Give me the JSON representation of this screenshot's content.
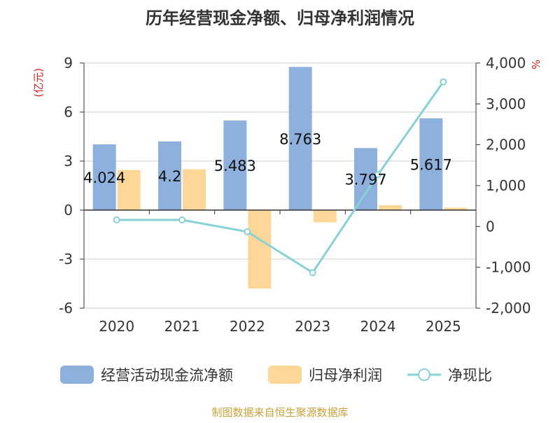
{
  "chart_data": {
    "type": "bar+line",
    "title": "历年经营现金净额、归母净利润情况",
    "categories": [
      "2020",
      "2021",
      "2022",
      "2023",
      "2024",
      "2025"
    ],
    "series": [
      {
        "name": "经营活动现金流净额",
        "type": "bar",
        "axis": "left",
        "color": "#8eb0dc",
        "values": [
          4.024,
          4.2,
          5.483,
          8.763,
          3.797,
          5.617
        ],
        "labels": [
          "4.024",
          "4.2",
          "5.483",
          "8.763",
          "3.797",
          "5.617"
        ]
      },
      {
        "name": "归母净利润",
        "type": "bar",
        "axis": "left",
        "color": "#fdd797",
        "values": [
          2.45,
          2.5,
          -4.8,
          -0.75,
          0.3,
          0.15
        ]
      },
      {
        "name": "净现比",
        "type": "line",
        "axis": "right",
        "color": "#86d2d6",
        "values": [
          160,
          160,
          -130,
          -1130,
          1270,
          3540
        ]
      }
    ],
    "left_axis": {
      "label": "(亿元)",
      "min": -6,
      "max": 9,
      "ticks": [
        -6,
        -3,
        0,
        3,
        6,
        9
      ],
      "tick_labels": [
        "-6",
        "-3",
        "0",
        "3",
        "6",
        "9"
      ]
    },
    "right_axis": {
      "label": "%",
      "min": -2000,
      "max": 4000,
      "ticks": [
        -2000,
        -1000,
        0,
        1000,
        2000,
        3000,
        4000
      ],
      "tick_labels": [
        "-2,000",
        "-1,000",
        "0",
        "1,000",
        "2,000",
        "3,000",
        "4,000"
      ]
    },
    "legend_position": "bottom",
    "grid": true,
    "source": "制图数据来自恒生聚源数据库"
  }
}
